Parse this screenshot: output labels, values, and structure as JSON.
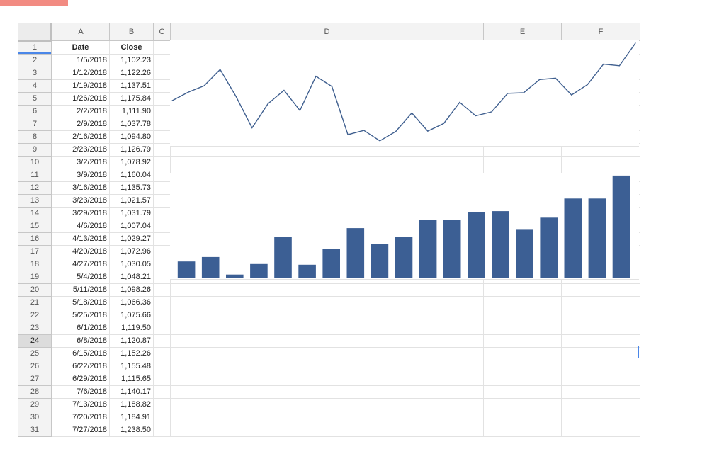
{
  "columns": [
    "A",
    "B",
    "C",
    "D",
    "E",
    "F"
  ],
  "header_row": {
    "row": "1",
    "date_label": "Date",
    "close_label": "Close"
  },
  "rows": [
    {
      "row": "2",
      "date": "1/5/2018",
      "close": "1,102.23"
    },
    {
      "row": "3",
      "date": "1/12/2018",
      "close": "1,122.26"
    },
    {
      "row": "4",
      "date": "1/19/2018",
      "close": "1,137.51"
    },
    {
      "row": "5",
      "date": "1/26/2018",
      "close": "1,175.84"
    },
    {
      "row": "6",
      "date": "2/2/2018",
      "close": "1,111.90"
    },
    {
      "row": "7",
      "date": "2/9/2018",
      "close": "1,037.78"
    },
    {
      "row": "8",
      "date": "2/16/2018",
      "close": "1,094.80"
    },
    {
      "row": "9",
      "date": "2/23/2018",
      "close": "1,126.79"
    },
    {
      "row": "10",
      "date": "3/2/2018",
      "close": "1,078.92"
    },
    {
      "row": "11",
      "date": "3/9/2018",
      "close": "1,160.04"
    },
    {
      "row": "12",
      "date": "3/16/2018",
      "close": "1,135.73"
    },
    {
      "row": "13",
      "date": "3/23/2018",
      "close": "1,021.57"
    },
    {
      "row": "14",
      "date": "3/29/2018",
      "close": "1,031.79"
    },
    {
      "row": "15",
      "date": "4/6/2018",
      "close": "1,007.04"
    },
    {
      "row": "16",
      "date": "4/13/2018",
      "close": "1,029.27"
    },
    {
      "row": "17",
      "date": "4/20/2018",
      "close": "1,072.96"
    },
    {
      "row": "18",
      "date": "4/27/2018",
      "close": "1,030.05"
    },
    {
      "row": "19",
      "date": "5/4/2018",
      "close": "1,048.21"
    },
    {
      "row": "20",
      "date": "5/11/2018",
      "close": "1,098.26"
    },
    {
      "row": "21",
      "date": "5/18/2018",
      "close": "1,066.36"
    },
    {
      "row": "22",
      "date": "5/25/2018",
      "close": "1,075.66"
    },
    {
      "row": "23",
      "date": "6/1/2018",
      "close": "1,119.50"
    },
    {
      "row": "24",
      "date": "6/8/2018",
      "close": "1,120.87"
    },
    {
      "row": "25",
      "date": "6/15/2018",
      "close": "1,152.26"
    },
    {
      "row": "26",
      "date": "6/22/2018",
      "close": "1,155.48"
    },
    {
      "row": "27",
      "date": "6/29/2018",
      "close": "1,115.65"
    },
    {
      "row": "28",
      "date": "7/6/2018",
      "close": "1,140.17"
    },
    {
      "row": "29",
      "date": "7/13/2018",
      "close": "1,188.82"
    },
    {
      "row": "30",
      "date": "7/20/2018",
      "close": "1,184.91"
    },
    {
      "row": "31",
      "date": "7/27/2018",
      "close": "1,238.50"
    }
  ],
  "active_row": "24",
  "colors": {
    "line": "#3f5f8f",
    "bar": "#3c5f94",
    "tab": "#f28b82",
    "selection": "#4a86e8"
  },
  "chart_data": [
    {
      "type": "line",
      "series": [
        {
          "values": [
            1102.23,
            1122.26,
            1137.51,
            1175.84,
            1111.9,
            1037.78,
            1094.8,
            1126.79,
            1078.92,
            1160.04,
            1135.73,
            1021.57,
            1031.79,
            1007.04,
            1029.27,
            1072.96,
            1030.05,
            1048.21,
            1098.26,
            1066.36,
            1075.66,
            1119.5,
            1120.87,
            1152.26,
            1155.48,
            1115.65,
            1140.17,
            1188.82,
            1184.91,
            1238.5
          ]
        }
      ],
      "ylim": [
        1000,
        1240
      ],
      "grid": false,
      "title": "",
      "xlabel": "",
      "ylabel": ""
    },
    {
      "type": "bar",
      "series": [
        {
          "values": [
            1037.78,
            1048.21,
            1007.04,
            1031.79,
            1094.8,
            1030.05,
            1066.36,
            1115.65,
            1078.92,
            1094.8,
            1135.73,
            1135.73,
            1152.26,
            1155.48,
            1111.9,
            1140.17,
            1184.91,
            1184.91,
            1238.5
          ]
        }
      ],
      "ylim": [
        1000,
        1240
      ],
      "grid": false,
      "title": "",
      "xlabel": "",
      "ylabel": ""
    }
  ]
}
